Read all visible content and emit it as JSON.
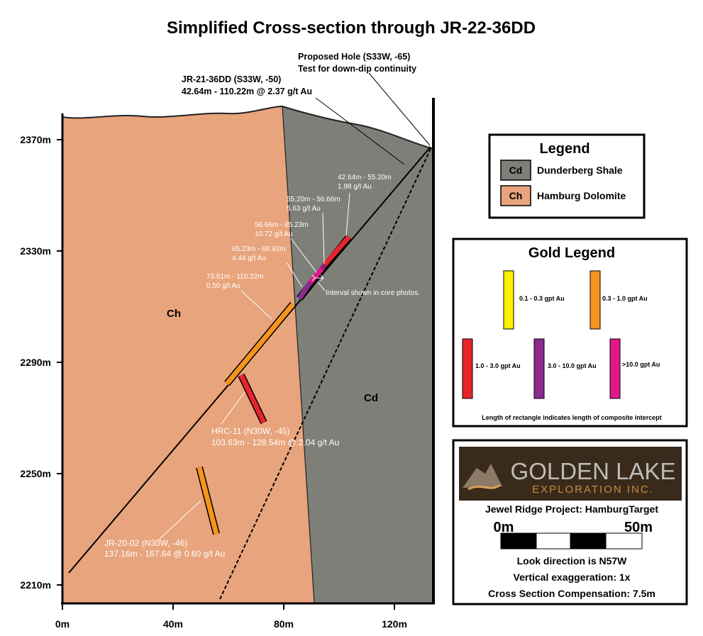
{
  "title": "Simplified Cross-section through JR-22-36DD",
  "y_axis_labels": [
    "2370m",
    "2330m",
    "2290m",
    "2250m",
    "2210m"
  ],
  "x_axis_labels": [
    "0m",
    "40m",
    "80m",
    "120m"
  ],
  "rock_labels": {
    "ch": "Ch",
    "cd": "Cd"
  },
  "annotations": {
    "proposed_hole": [
      "Proposed Hole (S33W, -65)",
      "Test for down-dip continuity"
    ],
    "jr_21_36dd": [
      "JR-21-36DD (S33W, -50)",
      "42.64m - 110.22m @ 2.37 g/t Au"
    ],
    "intervals": [
      [
        "42.64m - 55.20m",
        "1.98 g/t Au"
      ],
      [
        "55.20m - 56.66m",
        "5.63 g/t Au"
      ],
      [
        "56.66m - 65.23m",
        "10.72 g/t Au"
      ],
      [
        "65.23m - 68.92m",
        "4.44 g/t Au"
      ],
      [
        "73.61m - 110.22m",
        "0.50 g/t Au"
      ]
    ],
    "core_photos": "Interval shown in core photos.",
    "hrc_11": [
      "HRC-11 (N30W, -45)",
      "103.63m - 128.54m @ 2.04 g/t Au"
    ],
    "jr_20_02": [
      "JR-20-02 (N30W, -46)",
      "137.16m - 167.64 @ 0.60 g/t Au"
    ]
  },
  "legend": {
    "title": "Legend",
    "items": [
      {
        "code": "Cd",
        "label": "Dunderberg Shale"
      },
      {
        "code": "Ch",
        "label": "Hamburg Dolomite"
      }
    ]
  },
  "gold_legend": {
    "title": "Gold Legend",
    "items": [
      "0.1 - 0.3 gpt Au",
      "0.3 - 1.0 gpt Au",
      "1.0 - 3.0 gpt Au",
      "3.0 - 10.0 gpt Au",
      ">10.0 gpt Au"
    ],
    "note": "Length of rectangle indicates length of composite intercept"
  },
  "info": {
    "logo_name": "GOLDEN LAKE",
    "logo_sub": "EXPLORATION INC.",
    "project": "Jewel Ridge Project: HamburgTarget",
    "scale_labels": [
      "0m",
      "50m"
    ],
    "look_direction": "Look direction is N57W",
    "vertical_exaggeration": "Vertical exaggeration: 1x",
    "compensation": "Cross Section Compensation: 7.5m"
  }
}
